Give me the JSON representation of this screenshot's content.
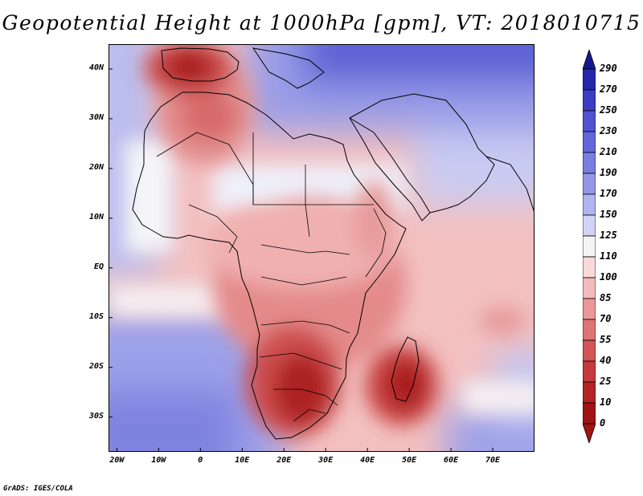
{
  "map": {
    "title": "Geopotential Height at 1000hPa [gpm], VT: 2018010715",
    "lat_labels": [
      {
        "label": "40N",
        "lat": 40
      },
      {
        "label": "30N",
        "lat": 30
      },
      {
        "label": "20N",
        "lat": 20
      },
      {
        "label": "10N",
        "lat": 10
      },
      {
        "label": "EQ",
        "lat": 0
      },
      {
        "label": "10S",
        "lat": -10
      },
      {
        "label": "20S",
        "lat": -20
      },
      {
        "label": "30S",
        "lat": -30
      }
    ],
    "lon_labels": [
      {
        "label": "20W",
        "lon": -20
      },
      {
        "label": "10W",
        "lon": -10
      },
      {
        "label": "0",
        "lon": 0
      },
      {
        "label": "10E",
        "lon": 10
      },
      {
        "label": "20E",
        "lon": 20
      },
      {
        "label": "30E",
        "lon": 30
      },
      {
        "label": "40E",
        "lon": 40
      },
      {
        "label": "50E",
        "lon": 50
      },
      {
        "label": "60E",
        "lon": 60
      },
      {
        "label": "70E",
        "lon": 70
      }
    ],
    "extent": {
      "lon_min": -22,
      "lon_max": 80,
      "lat_min": -37,
      "lat_max": 45
    },
    "colorbar": {
      "levels": [
        "290",
        "270",
        "250",
        "230",
        "210",
        "190",
        "170",
        "150",
        "125",
        "110",
        "100",
        "85",
        "70",
        "55",
        "40",
        "25",
        "10",
        "0"
      ],
      "colors": [
        "#15198f",
        "#2428ad",
        "#3a3ec4",
        "#4f53d0",
        "#6367da",
        "#7a7de2",
        "#9497e8",
        "#b1b4ef",
        "#d1d3f6",
        "#f4f4f6",
        "#f9d9d9",
        "#f3baba",
        "#ea9797",
        "#df7474",
        "#d35656",
        "#c53a3a",
        "#b42424",
        "#a01414"
      ]
    },
    "credit": "GrADS: IGES/COLA"
  }
}
